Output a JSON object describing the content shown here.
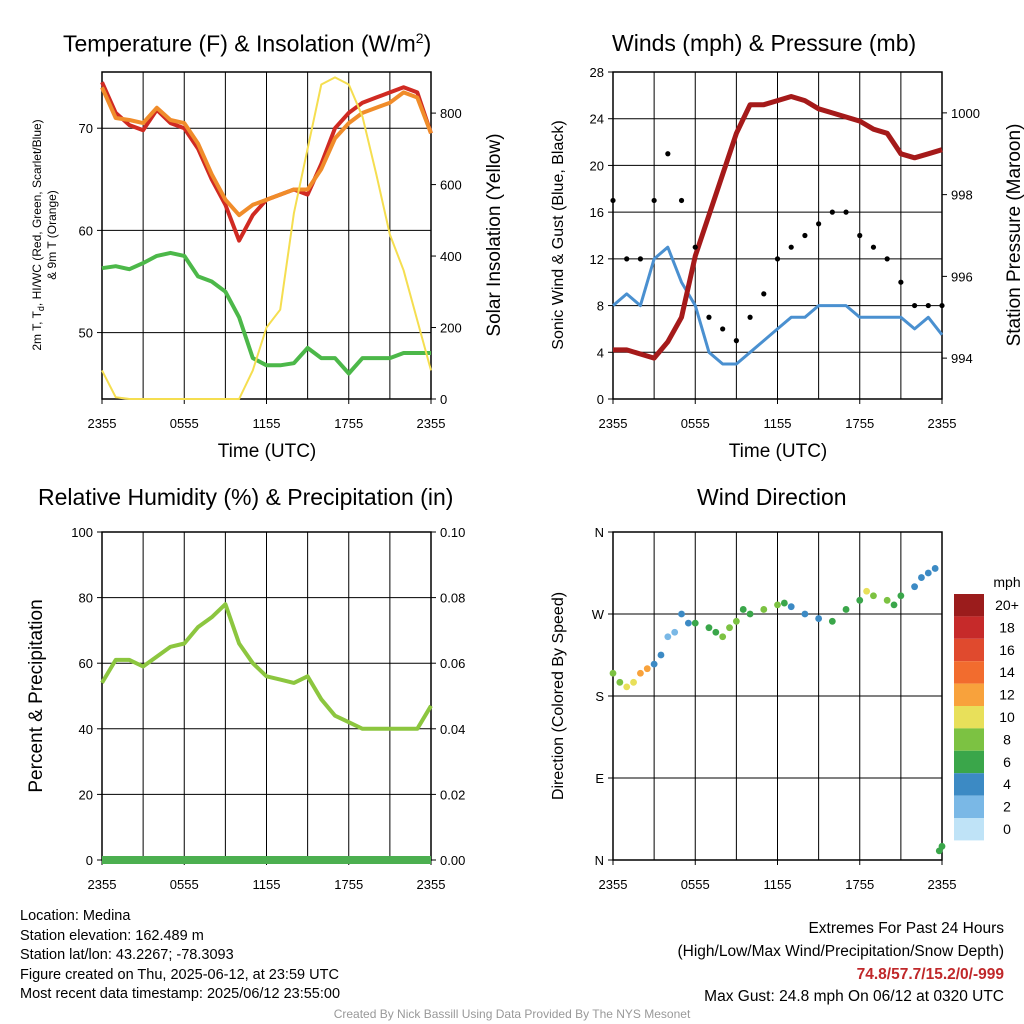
{
  "chart_data": [
    {
      "type": "line",
      "title": "Temperature (F) & Insolation (W/m",
      "title_sup": "2",
      "title_close": ")",
      "xlabel": "Time (UTC)",
      "ylabel_left": [
        "2m T, T",
        "d",
        ", HI/WC (Red, Green, Scarlet/Blue)",
        "& 9m T (Orange)"
      ],
      "ylabel_right": "Solar Insolation (Yellow)",
      "x_ticks": [
        "2355",
        "0555",
        "1155",
        "1755",
        "2355"
      ],
      "y_ticks_left": [
        50,
        60,
        70
      ],
      "ylim_left": [
        43.5,
        75.5
      ],
      "y_ticks_right": [
        0,
        200,
        400,
        600,
        800
      ],
      "ylim_right": [
        0,
        915
      ],
      "x": [
        0,
        1,
        2,
        3,
        4,
        5,
        6,
        7,
        8,
        9,
        10,
        11,
        12,
        13,
        14,
        15,
        16,
        17,
        18,
        19,
        20,
        21,
        22,
        23,
        24
      ],
      "series": [
        {
          "color": "#d02a22",
          "values": [
            74.5,
            71.5,
            70.3,
            69.8,
            71.8,
            70.5,
            70.0,
            68.0,
            65.0,
            62.5,
            59.0,
            61.5,
            63.0,
            63.5,
            64.0,
            63.5,
            66.5,
            70.0,
            71.5,
            72.5,
            73.0,
            73.5,
            74.0,
            73.5,
            69.5
          ],
          "axis": "left"
        },
        {
          "color": "#f08c2a",
          "values": [
            74.0,
            71.0,
            70.8,
            70.5,
            72.0,
            70.8,
            70.5,
            68.5,
            65.5,
            63.0,
            61.5,
            62.5,
            63.0,
            63.5,
            64.0,
            64.0,
            66.0,
            69.0,
            70.5,
            71.5,
            72.0,
            72.5,
            73.5,
            73.0,
            69.5
          ],
          "axis": "left"
        },
        {
          "color": "#4cb849",
          "values": [
            56.3,
            56.5,
            56.2,
            56.8,
            57.5,
            57.8,
            57.5,
            55.5,
            55.0,
            54.0,
            51.5,
            47.5,
            46.8,
            46.8,
            47.0,
            48.5,
            47.5,
            47.5,
            46.0,
            47.5,
            47.5,
            47.5,
            48.0,
            48.0,
            48.0
          ],
          "axis": "left"
        },
        {
          "color": "#f5de50",
          "values": [
            80,
            5,
            0,
            0,
            0,
            0,
            0,
            0,
            0,
            0,
            0,
            80,
            200,
            250,
            520,
            700,
            880,
            900,
            880,
            790,
            630,
            460,
            360,
            220,
            80
          ],
          "axis": "right"
        }
      ]
    },
    {
      "type": "line",
      "title": "Winds (mph) & Pressure (mb)",
      "xlabel": "Time (UTC)",
      "ylabel_left": "Sonic Wind & Gust (Blue, Black)",
      "ylabel_right": "Station Pressure (Maroon)",
      "x_ticks": [
        "2355",
        "0555",
        "1155",
        "1755",
        "2355"
      ],
      "y_ticks_left": [
        0,
        4,
        8,
        12,
        16,
        20,
        24,
        28
      ],
      "ylim_left": [
        0,
        28
      ],
      "y_ticks_right": [
        994,
        996,
        998,
        1000
      ],
      "ylim_right": [
        993.0,
        1001.0
      ],
      "x": [
        0,
        1,
        2,
        3,
        4,
        5,
        6,
        7,
        8,
        9,
        10,
        11,
        12,
        13,
        14,
        15,
        16,
        17,
        18,
        19,
        20,
        21,
        22,
        23,
        24
      ],
      "series": [
        {
          "name": "wind",
          "color": "#4a90d0",
          "values": [
            8,
            9,
            8,
            12,
            13,
            10,
            8,
            4,
            3,
            3,
            4,
            5,
            6,
            7,
            7,
            8,
            8,
            8,
            7,
            7,
            7,
            7,
            6,
            7,
            5.5
          ],
          "axis": "left"
        },
        {
          "name": "gust",
          "color": "#000000",
          "values": [
            17,
            12,
            12,
            17,
            21,
            17,
            13,
            7,
            6,
            5,
            7,
            9,
            12,
            13,
            14,
            15,
            16,
            16,
            14,
            13,
            12,
            10,
            8,
            8,
            8
          ],
          "axis": "left"
        },
        {
          "name": "pressure",
          "color": "#a51a1a",
          "values": [
            994.2,
            994.2,
            994.1,
            994.0,
            994.4,
            995.0,
            996.5,
            997.5,
            998.5,
            999.5,
            1000.2,
            1000.2,
            1000.3,
            1000.4,
            1000.3,
            1000.1,
            1000.0,
            999.9,
            999.8,
            999.6,
            999.5,
            999.0,
            998.9,
            999.0,
            999.1
          ],
          "axis": "right"
        }
      ]
    },
    {
      "type": "line",
      "title": "Relative Humidity (%) & Precipitation (in)",
      "ylabel_left": "Percent & Precipitation",
      "x_ticks": [
        "2355",
        "0555",
        "1155",
        "1755",
        "2355"
      ],
      "y_ticks_left": [
        0,
        20,
        40,
        60,
        80,
        100
      ],
      "ylim_left": [
        0,
        100
      ],
      "y_ticks_right": [
        "0.00",
        "0.02",
        "0.04",
        "0.06",
        "0.08",
        "0.10"
      ],
      "ylim_right": [
        0,
        0.1
      ],
      "x": [
        0,
        1,
        2,
        3,
        4,
        5,
        6,
        7,
        8,
        9,
        10,
        11,
        12,
        13,
        14,
        15,
        16,
        17,
        18,
        19,
        20,
        21,
        22,
        23,
        24
      ],
      "series": [
        {
          "color": "#8cc63f",
          "values": [
            54,
            61,
            61,
            59,
            62,
            65,
            66,
            71,
            74,
            78,
            66,
            60,
            56,
            55,
            54,
            56,
            49,
            44,
            42,
            40,
            40,
            40,
            40,
            40,
            47
          ]
        },
        {
          "color": "#4caf50",
          "values": [
            0,
            0,
            0,
            0,
            0,
            0,
            0,
            0,
            0,
            0,
            0,
            0,
            0,
            0,
            0,
            0,
            0,
            0,
            0,
            0,
            0,
            0,
            0,
            0,
            0
          ]
        }
      ]
    },
    {
      "type": "scatter",
      "title": "Wind Direction",
      "ylabel": "Direction (Colored By Speed)",
      "x_ticks": [
        "2355",
        "0555",
        "1155",
        "1755",
        "2355"
      ],
      "y_ticks": [
        "N",
        "E",
        "S",
        "W",
        "N"
      ],
      "ylim": [
        0,
        360
      ],
      "legend_title": "mph",
      "legend_labels": [
        "20+",
        "18",
        "16",
        "14",
        "12",
        "10",
        "8",
        "6",
        "4",
        "2",
        "0"
      ],
      "legend_colors": [
        "#9b1c1c",
        "#c62a2a",
        "#e04a2e",
        "#f26c2e",
        "#f8a23c",
        "#e8e05a",
        "#7cc242",
        "#3aa64a",
        "#3c8ac4",
        "#7ab8e6",
        "#bfe3f7"
      ],
      "points": [
        [
          0,
          205
        ],
        [
          0.5,
          195
        ],
        [
          1,
          190
        ],
        [
          1.5,
          195
        ],
        [
          2,
          205
        ],
        [
          2.5,
          210
        ],
        [
          3,
          215
        ],
        [
          3.5,
          225
        ],
        [
          4,
          245
        ],
        [
          4.5,
          250
        ],
        [
          5,
          270
        ],
        [
          5.5,
          260
        ],
        [
          6,
          260
        ],
        [
          7,
          255
        ],
        [
          7.5,
          250
        ],
        [
          8,
          245
        ],
        [
          8.5,
          255
        ],
        [
          9,
          262
        ],
        [
          9.5,
          275
        ],
        [
          10,
          270
        ],
        [
          11,
          275
        ],
        [
          12,
          280
        ],
        [
          12.5,
          282
        ],
        [
          13,
          278
        ],
        [
          14,
          270
        ],
        [
          15,
          265
        ],
        [
          16,
          262
        ],
        [
          17,
          275
        ],
        [
          18,
          285
        ],
        [
          18.5,
          295
        ],
        [
          19,
          290
        ],
        [
          20,
          285
        ],
        [
          20.5,
          280
        ],
        [
          21,
          290
        ],
        [
          22,
          300
        ],
        [
          22.5,
          310
        ],
        [
          23,
          315
        ],
        [
          23.5,
          320
        ],
        [
          23.8,
          10
        ],
        [
          24,
          15
        ]
      ]
    }
  ],
  "info": {
    "location": "Location: Medina",
    "elevation": "Station elevation: 162.489 m",
    "latlon": "Station lat/lon: 43.2267; -78.3093",
    "created": "Figure created on Thu, 2025-06-12, at 23:59 UTC",
    "recent": "Most recent data timestamp: 2025/06/12 23:55:00"
  },
  "extremes": {
    "title": "Extremes For Past 24 Hours",
    "subtitle": "(High/Low/Max Wind/Precipitation/Snow Depth)",
    "values": "74.8/57.7/15.2/0/-999",
    "gust": "Max Gust: 24.8 mph On 06/12 at 0320 UTC"
  },
  "credit": "Created By Nick Bassill Using Data Provided By The NYS Mesonet"
}
